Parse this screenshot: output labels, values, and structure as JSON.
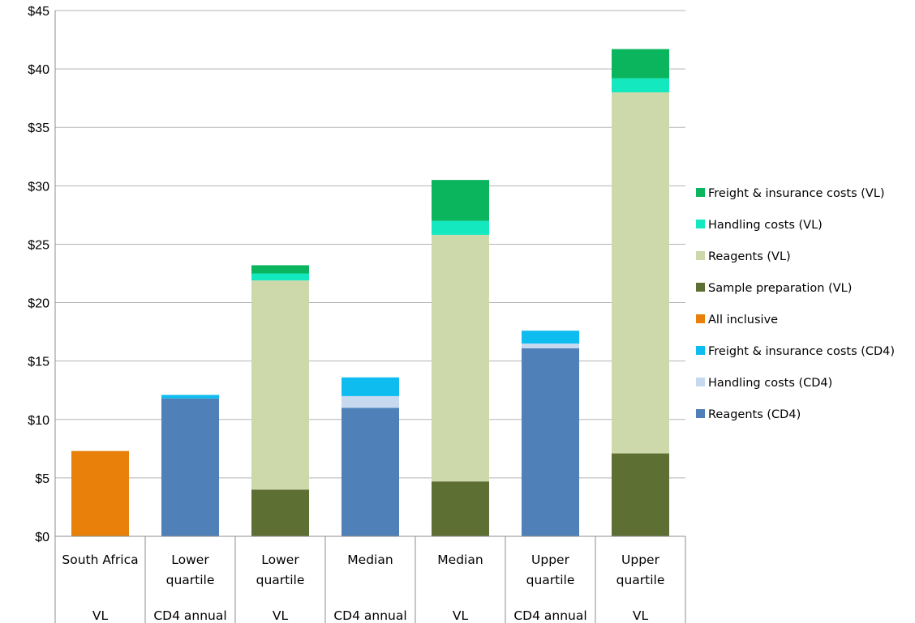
{
  "chart_data": {
    "type": "bar",
    "stacked": true,
    "title": "",
    "xlabel": "",
    "ylabel": "",
    "ylim": [
      0,
      45
    ],
    "y_ticks": [
      0,
      5,
      10,
      15,
      20,
      25,
      30,
      35,
      40,
      45
    ],
    "y_tick_labels": [
      "$0",
      "$5",
      "$10",
      "$15",
      "$20",
      "$25",
      "$30",
      "$35",
      "$40",
      "$45"
    ],
    "grid": "horizontal",
    "legend_position": "right",
    "categories": [
      {
        "lines": [
          "South Africa"
        ],
        "group": "VL"
      },
      {
        "lines": [
          "Lower",
          "quartile"
        ],
        "group": "CD4 annual"
      },
      {
        "lines": [
          "Lower",
          "quartile"
        ],
        "group": "VL"
      },
      {
        "lines": [
          "Median"
        ],
        "group": "CD4 annual"
      },
      {
        "lines": [
          "Median"
        ],
        "group": "VL"
      },
      {
        "lines": [
          "Upper",
          "quartile"
        ],
        "group": "CD4 annual"
      },
      {
        "lines": [
          "Upper",
          "quartile"
        ],
        "group": "VL"
      }
    ],
    "series": [
      {
        "name": "Reagents (CD4)",
        "color": "#4f81b8",
        "values": [
          0,
          11.8,
          0,
          11.0,
          0,
          16.1,
          0
        ]
      },
      {
        "name": "Handling costs (CD4)",
        "color": "#c6d9ef",
        "values": [
          0,
          0,
          0,
          1.0,
          0,
          0.4,
          0
        ]
      },
      {
        "name": "Freight & insurance costs (CD4)",
        "color": "#0ebcf0",
        "values": [
          0,
          0.3,
          0,
          1.6,
          0,
          1.1,
          0
        ]
      },
      {
        "name": "All inclusive",
        "color": "#e8800a",
        "values": [
          7.3,
          0,
          0,
          0,
          0,
          0,
          0
        ]
      },
      {
        "name": "Sample preparation (VL)",
        "color": "#5e6f33",
        "values": [
          0,
          0,
          4.0,
          0,
          4.7,
          0,
          7.1
        ]
      },
      {
        "name": "Reagents (VL)",
        "color": "#cdd9ab",
        "values": [
          0,
          0,
          17.9,
          0,
          21.1,
          0,
          30.9
        ]
      },
      {
        "name": "Handling costs (VL)",
        "color": "#13e8be",
        "values": [
          0,
          0,
          0.6,
          0,
          1.2,
          0,
          1.2
        ]
      },
      {
        "name": "Freight & insurance costs (VL)",
        "color": "#0ab55e",
        "values": [
          0,
          0,
          0.7,
          0,
          3.5,
          0,
          2.5
        ]
      }
    ]
  }
}
